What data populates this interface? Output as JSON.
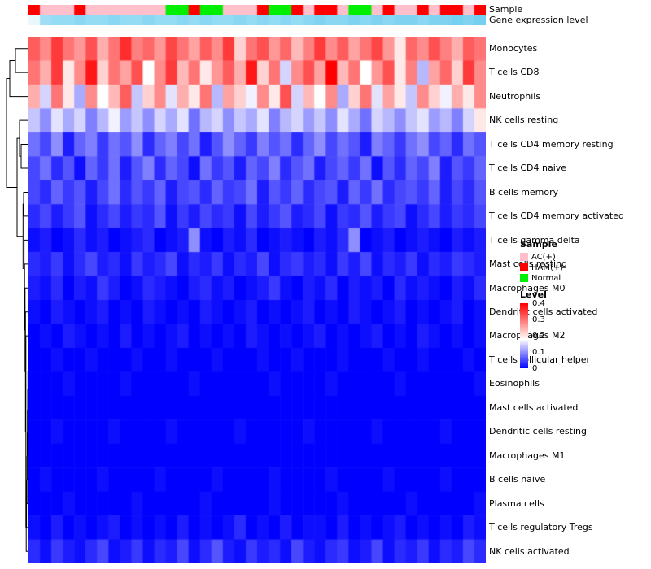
{
  "legend": {
    "sample_title": "Sample",
    "sample_items": [
      {
        "label": "AC(+)",
        "color": "#FFC0CB"
      },
      {
        "label": "HAM(+)",
        "color": "#FF0000"
      },
      {
        "label": "Normal",
        "color": "#00EE00"
      }
    ],
    "level_title": "Level",
    "level_ticks": [
      "0.4",
      "0.3",
      "0.2",
      "0.1",
      "0"
    ]
  },
  "chart_data": {
    "type": "heatmap",
    "title": "",
    "columns": 40,
    "value_range": [
      0,
      0.4
    ],
    "colormap": {
      "low": "#0000FF",
      "mid": "#FFFFFF",
      "high": "#FF0000",
      "mid_fraction": 0.45
    },
    "rows": [
      "Monocytes",
      "T cells CD8",
      "Neutrophils",
      "NK cells resting",
      "T cells CD4 memory resting",
      "T cells CD4 naive",
      "B cells memory",
      "T cells CD4 memory activated",
      "T cells gamma delta",
      "Mast cells resting",
      "Macrophages M0",
      "Dendritic cells activated",
      "Macrophages M2",
      "T cells follicular helper",
      "Eosinophils",
      "Mast cells activated",
      "Dendritic cells resting",
      "Macrophages M1",
      "B cells naive",
      "Plasma cells",
      "T cells regulatory Tregs",
      "NK cells activated"
    ],
    "values": [
      [
        0.32,
        0.28,
        0.35,
        0.3,
        0.27,
        0.33,
        0.25,
        0.3,
        0.36,
        0.29,
        0.31,
        0.27,
        0.34,
        0.3,
        0.26,
        0.32,
        0.28,
        0.35,
        0.22,
        0.3,
        0.33,
        0.27,
        0.31,
        0.24,
        0.29,
        0.35,
        0.28,
        0.32,
        0.26,
        0.3,
        0.34,
        0.27,
        0.2,
        0.31,
        0.28,
        0.33,
        0.29,
        0.25,
        0.32,
        0.3
      ],
      [
        0.3,
        0.25,
        0.35,
        0.2,
        0.28,
        0.38,
        0.22,
        0.3,
        0.26,
        0.33,
        0.18,
        0.28,
        0.35,
        0.24,
        0.3,
        0.2,
        0.27,
        0.32,
        0.25,
        0.38,
        0.22,
        0.3,
        0.15,
        0.28,
        0.33,
        0.26,
        0.4,
        0.24,
        0.3,
        0.18,
        0.27,
        0.33,
        0.2,
        0.29,
        0.13,
        0.26,
        0.31,
        0.22,
        0.35,
        0.28
      ],
      [
        0.25,
        0.15,
        0.3,
        0.2,
        0.12,
        0.28,
        0.18,
        0.24,
        0.32,
        0.14,
        0.22,
        0.28,
        0.16,
        0.25,
        0.2,
        0.3,
        0.13,
        0.26,
        0.22,
        0.17,
        0.28,
        0.2,
        0.33,
        0.15,
        0.24,
        0.18,
        0.28,
        0.12,
        0.22,
        0.3,
        0.16,
        0.26,
        0.2,
        0.14,
        0.28,
        0.22,
        0.17,
        0.25,
        0.2,
        0.28
      ],
      [
        0.14,
        0.1,
        0.16,
        0.12,
        0.15,
        0.09,
        0.13,
        0.17,
        0.11,
        0.14,
        0.1,
        0.15,
        0.12,
        0.16,
        0.08,
        0.13,
        0.15,
        0.1,
        0.14,
        0.12,
        0.16,
        0.09,
        0.13,
        0.15,
        0.11,
        0.14,
        0.1,
        0.16,
        0.12,
        0.08,
        0.15,
        0.13,
        0.1,
        0.14,
        0.16,
        0.11,
        0.13,
        0.09,
        0.15,
        0.2
      ],
      [
        0.08,
        0.05,
        0.1,
        0.02,
        0.07,
        0.09,
        0.04,
        0.08,
        0.06,
        0.1,
        0.03,
        0.07,
        0.09,
        0.05,
        0.08,
        0.02,
        0.06,
        0.1,
        0.07,
        0.04,
        0.09,
        0.06,
        0.08,
        0.03,
        0.07,
        0.1,
        0.05,
        0.08,
        0.06,
        0.02,
        0.09,
        0.07,
        0.04,
        0.08,
        0.1,
        0.05,
        0.07,
        0.03,
        0.08,
        0.06
      ],
      [
        0.05,
        0.08,
        0.03,
        0.06,
        0.01,
        0.07,
        0.04,
        0.08,
        0.02,
        0.06,
        0.09,
        0.03,
        0.07,
        0.05,
        0.01,
        0.08,
        0.04,
        0.06,
        0.02,
        0.07,
        0.05,
        0.09,
        0.03,
        0.06,
        0.08,
        0.02,
        0.05,
        0.07,
        0.04,
        0.08,
        0.01,
        0.06,
        0.03,
        0.07,
        0.05,
        0.09,
        0.02,
        0.06,
        0.04,
        0.07
      ],
      [
        0.05,
        0.03,
        0.07,
        0.04,
        0.06,
        0.02,
        0.05,
        0.08,
        0.03,
        0.06,
        0.04,
        0.07,
        0.02,
        0.05,
        0.06,
        0.03,
        0.07,
        0.04,
        0.05,
        0.08,
        0.02,
        0.06,
        0.04,
        0.07,
        0.03,
        0.05,
        0.06,
        0.02,
        0.07,
        0.04,
        0.08,
        0.03,
        0.05,
        0.06,
        0.04,
        0.07,
        0.02,
        0.05,
        0.03,
        0.06
      ],
      [
        0.03,
        0.05,
        0.02,
        0.04,
        0.06,
        0.01,
        0.03,
        0.05,
        0.02,
        0.04,
        0.03,
        0.06,
        0.01,
        0.04,
        0.02,
        0.05,
        0.03,
        0.04,
        0.01,
        0.05,
        0.02,
        0.04,
        0.06,
        0.02,
        0.03,
        0.05,
        0.01,
        0.04,
        0.03,
        0.06,
        0.02,
        0.04,
        0.05,
        0.01,
        0.03,
        0.05,
        0.02,
        0.04,
        0.03,
        0.05
      ],
      [
        0.01,
        0.02,
        0,
        0.01,
        0.03,
        0.01,
        0.02,
        0,
        0.01,
        0.02,
        0.03,
        0,
        0.01,
        0.02,
        0.1,
        0.01,
        0,
        0.02,
        0.01,
        0.03,
        0,
        0.01,
        0.02,
        0.01,
        0,
        0.02,
        0.01,
        0.03,
        0.1,
        0,
        0.01,
        0.02,
        0,
        0.01,
        0.02,
        0.01,
        0,
        0.02,
        0.01,
        0.02
      ],
      [
        0.03,
        0.02,
        0.04,
        0.01,
        0.03,
        0.05,
        0.02,
        0.03,
        0.01,
        0.04,
        0.02,
        0.03,
        0.05,
        0.01,
        0.03,
        0.02,
        0.04,
        0.01,
        0.03,
        0.02,
        0.05,
        0.01,
        0.03,
        0.04,
        0.02,
        0.03,
        0.01,
        0.04,
        0.02,
        0.05,
        0.01,
        0.03,
        0.02,
        0.04,
        0.01,
        0.03,
        0.02,
        0.04,
        0.03,
        0.02
      ],
      [
        0.02,
        0.01,
        0.03,
        0,
        0.02,
        0.01,
        0.04,
        0.02,
        0,
        0.01,
        0.03,
        0.02,
        0.01,
        0,
        0.02,
        0.03,
        0.01,
        0.02,
        0,
        0.01,
        0.02,
        0.04,
        0.01,
        0,
        0.02,
        0.01,
        0.03,
        0,
        0.02,
        0.01,
        0.02,
        0,
        0.03,
        0.01,
        0.02,
        0.01,
        0,
        0.02,
        0.01,
        0.03
      ],
      [
        0.01,
        0,
        0.02,
        0.01,
        0,
        0.01,
        0.02,
        0,
        0.01,
        0,
        0.02,
        0.01,
        0,
        0.01,
        0,
        0.02,
        0.01,
        0,
        0.01,
        0.02,
        0,
        0.01,
        0,
        0.01,
        0.02,
        0,
        0.01,
        0,
        0.02,
        0.01,
        0,
        0.01,
        0.02,
        0,
        0.01,
        0,
        0.01,
        0.02,
        0,
        0.01
      ],
      [
        0,
        0.01,
        0,
        0.02,
        0.01,
        0,
        0.01,
        0,
        0.02,
        0,
        0.01,
        0,
        0.01,
        0.02,
        0,
        0.01,
        0,
        0.01,
        0,
        0.02,
        0.01,
        0,
        0.01,
        0,
        0.01,
        0.02,
        0,
        0.01,
        0,
        0.01,
        0.02,
        0,
        0.01,
        0,
        0.02,
        0.01,
        0,
        0.01,
        0,
        0.01
      ],
      [
        0,
        0,
        0.01,
        0,
        0,
        0.01,
        0,
        0,
        0,
        0.01,
        0,
        0,
        0.01,
        0,
        0,
        0,
        0.01,
        0,
        0,
        0,
        0.01,
        0,
        0,
        0.01,
        0,
        0,
        0,
        0.01,
        0,
        0,
        0,
        0.01,
        0,
        0,
        0.01,
        0,
        0,
        0,
        0.01,
        0
      ],
      [
        0,
        0,
        0,
        0.01,
        0,
        0,
        0,
        0,
        0.01,
        0,
        0,
        0,
        0,
        0,
        0.01,
        0,
        0,
        0,
        0,
        0,
        0,
        0.01,
        0,
        0,
        0,
        0,
        0.01,
        0,
        0,
        0,
        0,
        0,
        0.01,
        0,
        0,
        0,
        0,
        0,
        0,
        0.01
      ],
      [
        0,
        0,
        0,
        0,
        0,
        0,
        0,
        0,
        0,
        0,
        0,
        0,
        0,
        0,
        0,
        0,
        0,
        0,
        0,
        0,
        0,
        0,
        0,
        0,
        0,
        0,
        0,
        0,
        0,
        0,
        0,
        0,
        0,
        0,
        0,
        0,
        0,
        0,
        0,
        0
      ],
      [
        0,
        0,
        0.01,
        0,
        0,
        0,
        0,
        0.01,
        0,
        0,
        0,
        0,
        0.01,
        0,
        0,
        0,
        0,
        0,
        0.01,
        0,
        0,
        0,
        0,
        0,
        0.01,
        0,
        0,
        0,
        0,
        0,
        0.01,
        0,
        0,
        0,
        0,
        0,
        0.01,
        0,
        0,
        0
      ],
      [
        0,
        0,
        0,
        0,
        0,
        0,
        0,
        0,
        0,
        0,
        0,
        0,
        0,
        0,
        0,
        0,
        0,
        0,
        0,
        0,
        0,
        0,
        0,
        0,
        0,
        0,
        0,
        0,
        0,
        0,
        0,
        0,
        0,
        0,
        0,
        0,
        0,
        0,
        0,
        0
      ],
      [
        0,
        0.01,
        0,
        0,
        0,
        0,
        0.01,
        0,
        0,
        0,
        0,
        0.01,
        0,
        0,
        0,
        0,
        0.01,
        0,
        0,
        0,
        0,
        0.01,
        0,
        0,
        0,
        0,
        0.01,
        0,
        0,
        0,
        0,
        0.01,
        0,
        0,
        0,
        0,
        0.01,
        0,
        0,
        0
      ],
      [
        0,
        0,
        0,
        0.01,
        0,
        0,
        0,
        0,
        0,
        0.01,
        0,
        0,
        0,
        0,
        0,
        0.01,
        0,
        0,
        0,
        0,
        0,
        0.01,
        0,
        0,
        0,
        0,
        0,
        0.01,
        0,
        0,
        0,
        0,
        0,
        0.01,
        0,
        0,
        0,
        0,
        0,
        0.01
      ],
      [
        0.01,
        0,
        0.02,
        0,
        0.01,
        0,
        0.01,
        0.02,
        0,
        0.01,
        0,
        0.01,
        0,
        0.02,
        0,
        0.01,
        0,
        0.01,
        0.03,
        0,
        0.01,
        0,
        0.02,
        0,
        0.01,
        0.01,
        0,
        0.02,
        0,
        0.01,
        0,
        0.01,
        0.02,
        0,
        0.01,
        0,
        0.01,
        0,
        0.02,
        0.01
      ],
      [
        0.03,
        0.01,
        0.04,
        0.02,
        0.01,
        0.03,
        0.05,
        0.01,
        0.02,
        0.04,
        0.01,
        0.03,
        0.02,
        0.05,
        0.01,
        0.03,
        0.06,
        0.02,
        0.01,
        0.04,
        0.02,
        0.03,
        0.01,
        0.05,
        0.02,
        0.01,
        0.03,
        0.04,
        0.01,
        0.02,
        0.05,
        0.01,
        0.03,
        0.02,
        0.04,
        0.01,
        0.03,
        0.02,
        0.05,
        0.03
      ]
    ],
    "column_annotations": {
      "sample": {
        "label": "Sample",
        "values": [
          "HAM(+)",
          "AC(+)",
          "AC(+)",
          "AC(+)",
          "HAM(+)",
          "AC(+)",
          "AC(+)",
          "AC(+)",
          "AC(+)",
          "AC(+)",
          "AC(+)",
          "AC(+)",
          "Normal",
          "Normal",
          "HAM(+)",
          "Normal",
          "Normal",
          "AC(+)",
          "AC(+)",
          "AC(+)",
          "HAM(+)",
          "Normal",
          "Normal",
          "HAM(+)",
          "AC(+)",
          "HAM(+)",
          "HAM(+)",
          "AC(+)",
          "Normal",
          "Normal",
          "AC(+)",
          "HAM(+)",
          "AC(+)",
          "AC(+)",
          "HAM(+)",
          "AC(+)",
          "HAM(+)",
          "HAM(+)",
          "AC(+)",
          "HAM(+)"
        ]
      },
      "gene_expression": {
        "label": "Gene expression level",
        "low_color": "#FFFFFF",
        "high_color": "#29B6E8",
        "values": [
          0.1,
          0.45,
          0.5,
          0.5,
          0.55,
          0.5,
          0.5,
          0.55,
          0.5,
          0.5,
          0.55,
          0.5,
          0.5,
          0.55,
          0.5,
          0.55,
          0.5,
          0.5,
          0.55,
          0.5,
          0.55,
          0.5,
          0.55,
          0.5,
          0.55,
          0.6,
          0.55,
          0.55,
          0.6,
          0.55,
          0.6,
          0.55,
          0.6,
          0.6,
          0.55,
          0.6,
          0.6,
          0.65,
          0.6,
          0.65
        ]
      }
    },
    "row_dendrogram": {
      "merges": [
        {
          "id": "A",
          "a": "r0",
          "b": "r1",
          "x": 13
        },
        {
          "id": "B",
          "a": "A",
          "b": "r2",
          "x": 6
        },
        {
          "id": "C",
          "a": "r4",
          "b": "r5",
          "x": 20
        },
        {
          "id": "D",
          "a": "r3",
          "b": "C",
          "x": 18
        },
        {
          "id": "E",
          "a": "r6",
          "b": "r7",
          "x": 23
        },
        {
          "id": "G1",
          "a": "r13",
          "b": "r14",
          "x": 28.6
        },
        {
          "id": "G2",
          "a": "G1",
          "b": "r15",
          "x": 28.3
        },
        {
          "id": "G3",
          "a": "G2",
          "b": "r16",
          "x": 28.0
        },
        {
          "id": "G4",
          "a": "G3",
          "b": "r17",
          "x": 27.7
        },
        {
          "id": "G5",
          "a": "G4",
          "b": "r18",
          "x": 27.4
        },
        {
          "id": "G6",
          "a": "G5",
          "b": "r19",
          "x": 27.1
        },
        {
          "id": "G7",
          "a": "G6",
          "b": "r20",
          "x": 26.6
        },
        {
          "id": "G8",
          "a": "G7",
          "b": "r21",
          "x": 26.2
        },
        {
          "id": "H1",
          "a": "r12",
          "b": "G8",
          "x": 25.8
        },
        {
          "id": "H2",
          "a": "r11",
          "b": "H1",
          "x": 25.3
        },
        {
          "id": "H3",
          "a": "r10",
          "b": "H2",
          "x": 24.8
        },
        {
          "id": "H4",
          "a": "r9",
          "b": "H3",
          "x": 24.2
        },
        {
          "id": "H5",
          "a": "r8",
          "b": "H4",
          "x": 23.6
        },
        {
          "id": "I",
          "a": "E",
          "b": "H5",
          "x": 22.3
        },
        {
          "id": "J",
          "a": "D",
          "b": "I",
          "x": 15
        },
        {
          "id": "K",
          "a": "B",
          "b": "J",
          "x": 2
        }
      ]
    }
  }
}
